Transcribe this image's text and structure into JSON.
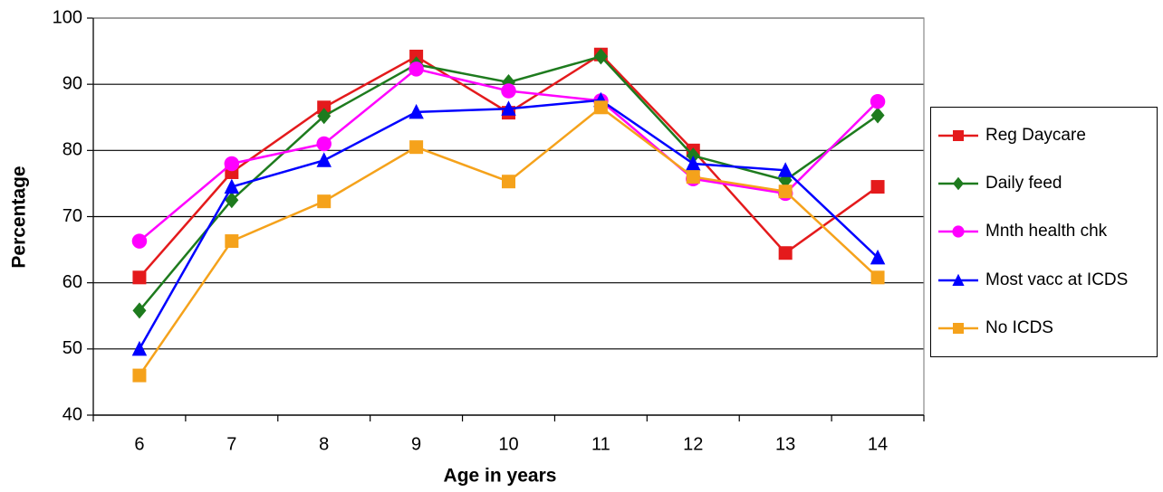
{
  "chart_data": {
    "type": "line",
    "x_label": "Age in years",
    "y_label": "Percentage",
    "categories": [
      "6",
      "7",
      "8",
      "9",
      "10",
      "11",
      "12",
      "13",
      "14"
    ],
    "series": [
      {
        "name": "Reg Daycare",
        "color": "#e41a1c",
        "marker": "square",
        "values": [
          60.8,
          76.7,
          86.5,
          94.2,
          85.7,
          94.5,
          80,
          64.5,
          74.5
        ]
      },
      {
        "name": "Daily feed",
        "color": "#1e7b1e",
        "marker": "diamond",
        "values": [
          55.8,
          72.5,
          85.2,
          93,
          90.3,
          94.2,
          79.2,
          75.5,
          85.3
        ]
      },
      {
        "name": "Mnth health chk",
        "color": "#ff00ff",
        "marker": "circle",
        "values": [
          66.3,
          78,
          81,
          92.3,
          89,
          87.5,
          75.7,
          73.5,
          87.4
        ]
      },
      {
        "name": "Most vacc at ICDS",
        "color": "#0000ff",
        "marker": "triangle",
        "values": [
          50,
          74.5,
          78.5,
          85.8,
          86.3,
          87.6,
          78,
          77,
          63.8
        ]
      },
      {
        "name": "No ICDS",
        "color": "#f5a21b",
        "marker": "square",
        "values": [
          46,
          66.3,
          72.3,
          80.5,
          75.3,
          86.5,
          76,
          73.8,
          60.8
        ]
      }
    ],
    "ylim": [
      40,
      100
    ],
    "yticks": [
      40,
      50,
      60,
      70,
      80,
      90,
      100
    ],
    "grid": true,
    "legend": "right"
  }
}
